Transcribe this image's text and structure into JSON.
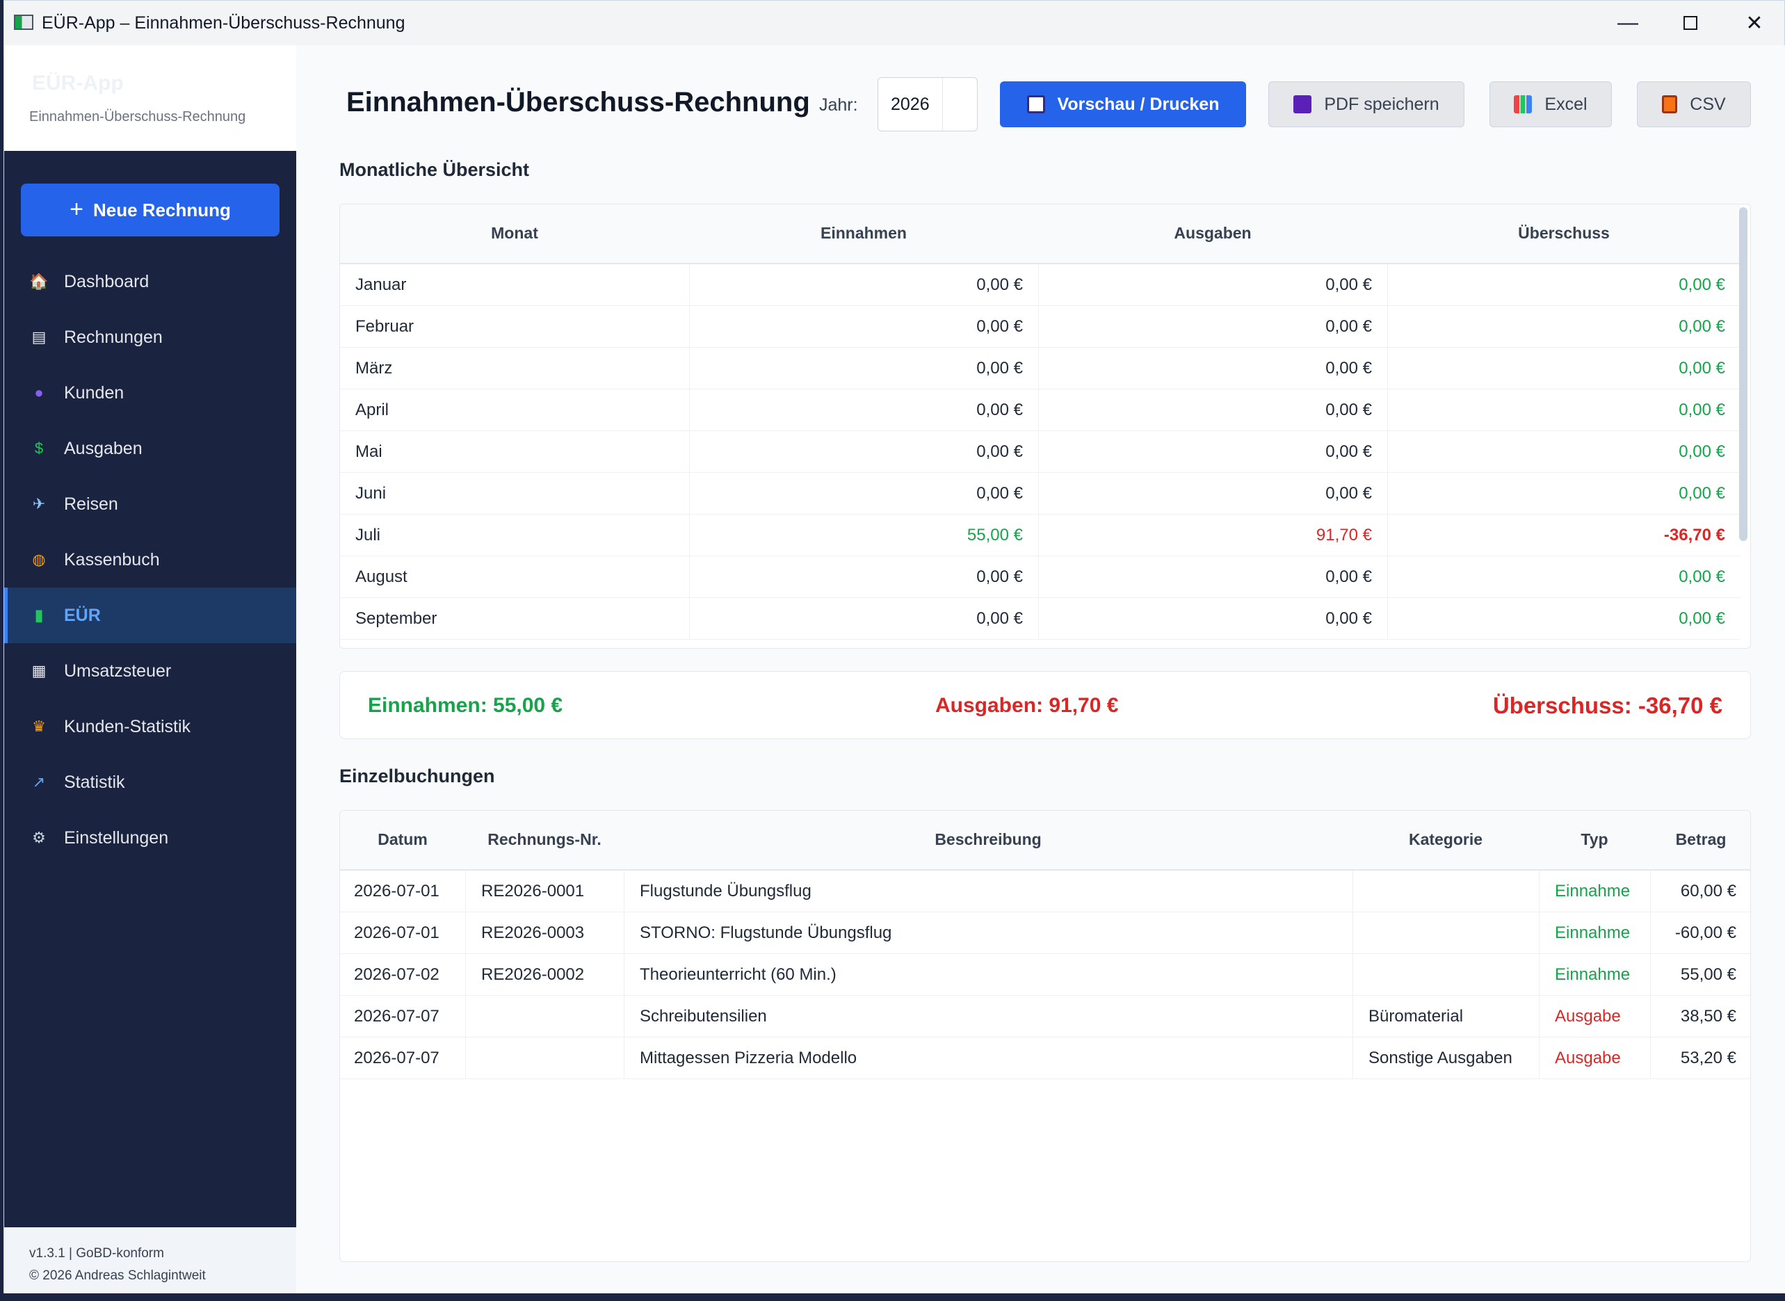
{
  "window": {
    "title": "EÜR-App – Einnahmen-Überschuss-Rechnung"
  },
  "sidebar": {
    "brand_name": "EÜR-App",
    "brand_sub": "Einnahmen-Überschuss-Rechnung",
    "new_invoice_label": "Neue Rechnung",
    "items": [
      {
        "label": "Dashboard",
        "icon": "house-icon"
      },
      {
        "label": "Rechnungen",
        "icon": "document-icon"
      },
      {
        "label": "Kunden",
        "icon": "person-icon"
      },
      {
        "label": "Ausgaben",
        "icon": "money-wings-icon"
      },
      {
        "label": "Reisen",
        "icon": "airplane-icon"
      },
      {
        "label": "Kassenbuch",
        "icon": "money-bag-icon"
      },
      {
        "label": "EÜR",
        "icon": "bar-chart-icon",
        "active": true
      },
      {
        "label": "Umsatzsteuer",
        "icon": "receipt-icon"
      },
      {
        "label": "Kunden-Statistik",
        "icon": "trophy-icon"
      },
      {
        "label": "Statistik",
        "icon": "trend-chart-icon"
      },
      {
        "label": "Einstellungen",
        "icon": "gear-icon"
      }
    ],
    "footer_version": "v1.3.1  |  GoBD-konform",
    "footer_copyright": "© 2026 Andreas Schlagintweit"
  },
  "header": {
    "title": "Einnahmen-Überschuss-Rechnung",
    "year_label": "Jahr:",
    "year_value": "2026",
    "buttons": {
      "preview": "Vorschau / Drucken",
      "pdf": "PDF speichern",
      "excel": "Excel",
      "csv": "CSV"
    }
  },
  "monthly": {
    "title": "Monatliche Übersicht",
    "columns": [
      "Monat",
      "Einnahmen",
      "Ausgaben",
      "Überschuss"
    ],
    "rows": [
      {
        "month": "Januar",
        "income": "0,00 €",
        "expenses": "0,00 €",
        "surplus": "0,00 €"
      },
      {
        "month": "Februar",
        "income": "0,00 €",
        "expenses": "0,00 €",
        "surplus": "0,00 €"
      },
      {
        "month": "März",
        "income": "0,00 €",
        "expenses": "0,00 €",
        "surplus": "0,00 €"
      },
      {
        "month": "April",
        "income": "0,00 €",
        "expenses": "0,00 €",
        "surplus": "0,00 €"
      },
      {
        "month": "Mai",
        "income": "0,00 €",
        "expenses": "0,00 €",
        "surplus": "0,00 €"
      },
      {
        "month": "Juni",
        "income": "0,00 €",
        "expenses": "0,00 €",
        "surplus": "0,00 €"
      },
      {
        "month": "Juli",
        "income": "55,00 €",
        "expenses": "91,70 €",
        "surplus": "-36,70 €"
      },
      {
        "month": "August",
        "income": "0,00 €",
        "expenses": "0,00 €",
        "surplus": "0,00 €"
      },
      {
        "month": "September",
        "income": "0,00 €",
        "expenses": "0,00 €",
        "surplus": "0,00 €"
      }
    ]
  },
  "totals": {
    "income": "Einnahmen: 55,00 €",
    "expenses": "Ausgaben: 91,70 €",
    "surplus": "Überschuss: -36,70 €"
  },
  "bookings": {
    "title": "Einzelbuchungen",
    "columns": [
      "Datum",
      "Rechnungs-Nr.",
      "Beschreibung",
      "Kategorie",
      "Typ",
      "Betrag"
    ],
    "rows": [
      {
        "date": "2026-07-01",
        "invoice": "RE2026-0001",
        "description": "Flugstunde Übungsflug",
        "category": "",
        "type": "Einnahme",
        "amount": "60,00 €"
      },
      {
        "date": "2026-07-01",
        "invoice": "RE2026-0003",
        "description": "STORNO: Flugstunde Übungsflug",
        "category": "",
        "type": "Einnahme",
        "amount": "-60,00 €"
      },
      {
        "date": "2026-07-02",
        "invoice": "RE2026-0002",
        "description": "Theorieunterricht (60 Min.)",
        "category": "",
        "type": "Einnahme",
        "amount": "55,00 €"
      },
      {
        "date": "2026-07-07",
        "invoice": "",
        "description": "Schreibutensilien",
        "category": "Büromaterial",
        "type": "Ausgabe",
        "amount": "38,50 €"
      },
      {
        "date": "2026-07-07",
        "invoice": "",
        "description": "Mittagessen Pizzeria Modello",
        "category": "Sonstige Ausgaben",
        "type": "Ausgabe",
        "amount": "53,20 €"
      }
    ]
  },
  "colors": {
    "accent": "#2563eb",
    "sidebar": "#1a2340",
    "positive": "#16a34a",
    "negative": "#dc2626"
  }
}
